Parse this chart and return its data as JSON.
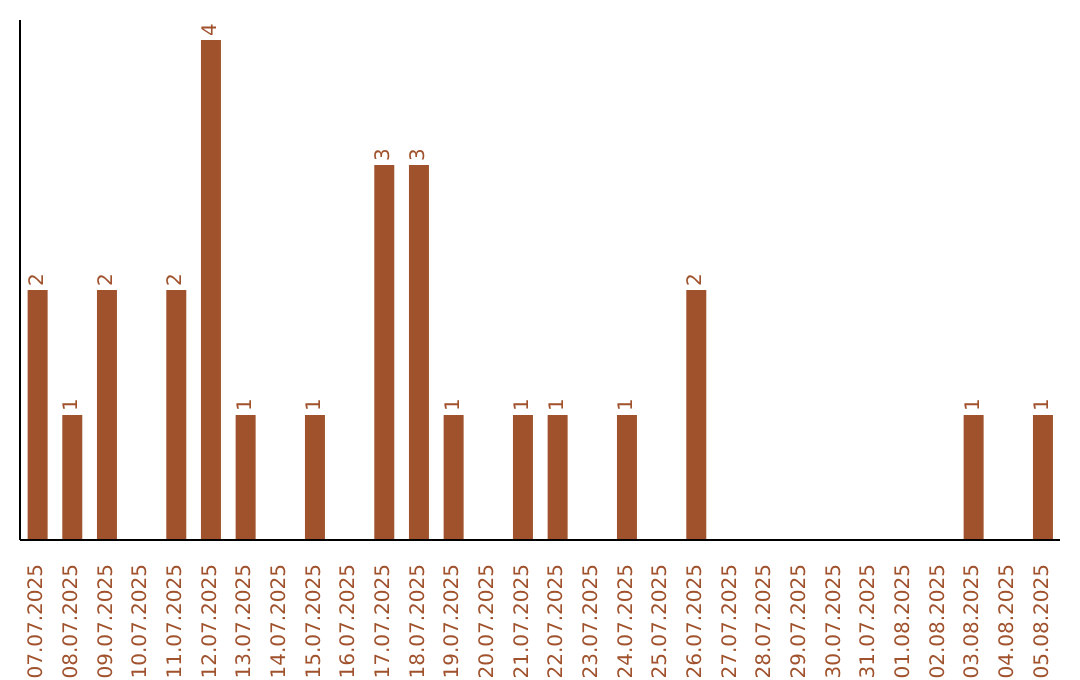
{
  "chart_data": {
    "type": "bar",
    "categories": [
      "07.07.2025",
      "08.07.2025",
      "09.07.2025",
      "10.07.2025",
      "11.07.2025",
      "12.07.2025",
      "13.07.2025",
      "14.07.2025",
      "15.07.2025",
      "16.07.2025",
      "17.07.2025",
      "18.07.2025",
      "19.07.2025",
      "20.07.2025",
      "21.07.2025",
      "22.07.2025",
      "23.07.2025",
      "24.07.2025",
      "25.07.2025",
      "26.07.2025",
      "27.07.2025",
      "28.07.2025",
      "29.07.2025",
      "30.07.2025",
      "31.07.2025",
      "01.08.2025",
      "02.08.2025",
      "03.08.2025",
      "04.08.2025",
      "05.08.2025"
    ],
    "values": [
      2,
      1,
      2,
      0,
      2,
      4,
      1,
      0,
      1,
      0,
      3,
      3,
      1,
      0,
      1,
      1,
      0,
      1,
      0,
      2,
      0,
      0,
      0,
      0,
      0,
      0,
      0,
      1,
      0,
      1
    ],
    "value_labels": [
      "2",
      "1",
      "2",
      null,
      "2",
      "4",
      "1",
      null,
      "1",
      null,
      "3",
      "3",
      "1",
      null,
      "1",
      "1",
      null,
      "1",
      null,
      "2",
      null,
      null,
      null,
      null,
      null,
      null,
      null,
      "1",
      null,
      "1"
    ],
    "color": "#a0522d",
    "tick_labels": "x"
  }
}
